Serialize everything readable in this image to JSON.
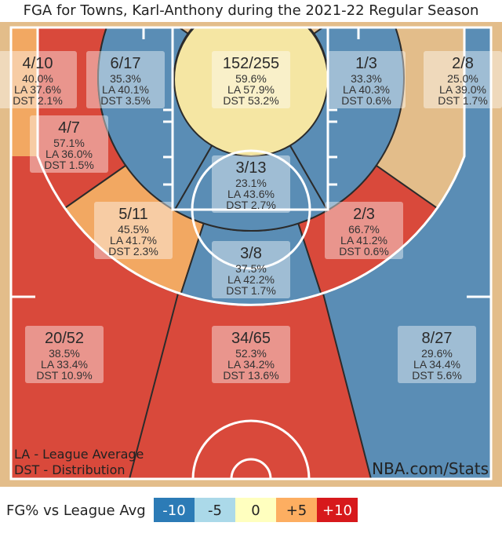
{
  "chart_data": {
    "type": "heatmap",
    "title": "FGA for Towns, Karl-Anthony during the 2021-22 Regular Season",
    "colors": {
      "-10": "#5a8db5",
      "-5": "#abd9e9",
      "0": "#f5e6a3",
      "+5": "#f2a862",
      "+10": "#d9493b",
      "none": "#e3bd8a"
    },
    "zones": [
      {
        "id": "restricted",
        "made_att": "152/255",
        "pct": "59.6%",
        "la": "LA 57.9%",
        "dst": "DST 53.2%",
        "level": "0"
      },
      {
        "id": "mid8_16_left",
        "made_att": "6/17",
        "pct": "35.3%",
        "la": "LA 40.1%",
        "dst": "DST 3.5%",
        "level": "-10"
      },
      {
        "id": "mid8_16_center",
        "made_att": "3/13",
        "pct": "23.1%",
        "la": "LA 43.6%",
        "dst": "DST 2.7%",
        "level": "-10"
      },
      {
        "id": "mid8_16_right",
        "made_att": "1/3",
        "pct": "33.3%",
        "la": "LA 40.3%",
        "dst": "DST 0.6%",
        "level": "-10"
      },
      {
        "id": "corner3_left",
        "made_att": "4/10",
        "pct": "40.0%",
        "la": "LA 37.6%",
        "dst": "DST 2.1%",
        "level": "+5"
      },
      {
        "id": "corner3_right",
        "made_att": "2/8",
        "pct": "25.0%",
        "la": "LA 39.0%",
        "dst": "DST 1.7%",
        "level": "-10"
      },
      {
        "id": "mid16_24_left_baseline",
        "made_att": "4/7",
        "pct": "57.1%",
        "la": "LA 36.0%",
        "dst": "DST 1.5%",
        "level": "+10"
      },
      {
        "id": "mid16_24_left_wing",
        "made_att": "5/11",
        "pct": "45.5%",
        "la": "LA 41.7%",
        "dst": "DST 2.3%",
        "level": "+5"
      },
      {
        "id": "mid16_24_center",
        "made_att": "3/8",
        "pct": "37.5%",
        "la": "LA 42.2%",
        "dst": "DST 1.7%",
        "level": "-10"
      },
      {
        "id": "mid16_24_right_wing",
        "made_att": "2/3",
        "pct": "66.7%",
        "la": "LA 41.2%",
        "dst": "DST 0.6%",
        "level": "+10"
      },
      {
        "id": "above_break3_left",
        "made_att": "20/52",
        "pct": "38.5%",
        "la": "LA 33.4%",
        "dst": "DST 10.9%",
        "level": "+10"
      },
      {
        "id": "above_break3_center",
        "made_att": "34/65",
        "pct": "52.3%",
        "la": "LA 34.2%",
        "dst": "DST 13.6%",
        "level": "+10"
      },
      {
        "id": "above_break3_right",
        "made_att": "8/27",
        "pct": "29.6%",
        "la": "LA 34.4%",
        "dst": "DST 5.6%",
        "level": "-10"
      }
    ],
    "notes": [
      "LA - League Average",
      "DST - Distribution"
    ],
    "source": "NBA.com/Stats",
    "legend": {
      "label": "FG% vs League Avg",
      "items": [
        {
          "label": "-10",
          "color": "#2c7bb6",
          "text_color": "#ffffff"
        },
        {
          "label": "-5",
          "color": "#abd9e9",
          "text_color": "#222222"
        },
        {
          "label": "0",
          "color": "#ffffbf",
          "text_color": "#222222"
        },
        {
          "label": "+5",
          "color": "#fdae61",
          "text_color": "#222222"
        },
        {
          "label": "+10",
          "color": "#d7191c",
          "text_color": "#ffffff"
        }
      ]
    }
  }
}
